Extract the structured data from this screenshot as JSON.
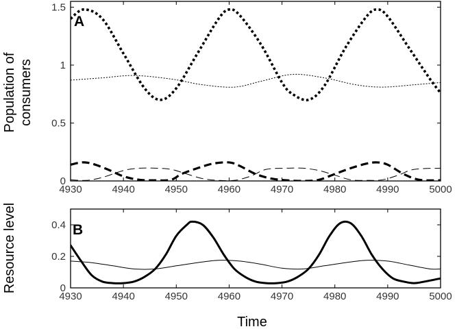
{
  "chart_data": [
    {
      "type": "line",
      "panel_label": "A",
      "ylabel": "Population of consumers",
      "ylabel_lines": [
        "Population of",
        "consumers"
      ],
      "xlim": [
        4930,
        5000
      ],
      "ylim": [
        0,
        1.55
      ],
      "x_ticks": [
        4930,
        4940,
        4950,
        4960,
        4970,
        4980,
        4990,
        5000
      ],
      "x_tick_labels": [
        "4930",
        "4940",
        "4950",
        "4960",
        "4970",
        "4980",
        "4990",
        "5000"
      ],
      "y_ticks": [
        0,
        0.5,
        1,
        1.5
      ],
      "y_tick_labels": [
        "0",
        "0.5",
        "1",
        "1.5"
      ],
      "series": [
        {
          "style": "thick-dotted",
          "x": [
            4930,
            4932.5,
            4936,
            4940,
            4944,
            4947,
            4950,
            4954,
            4958,
            4960,
            4962,
            4966,
            4970,
            4972,
            4975,
            4978,
            4982,
            4986,
            4988,
            4990,
            4994,
            4998,
            5000
          ],
          "y": [
            1.4,
            1.48,
            1.4,
            1.1,
            0.8,
            0.7,
            0.8,
            1.1,
            1.4,
            1.48,
            1.43,
            1.18,
            0.85,
            0.75,
            0.7,
            0.82,
            1.15,
            1.42,
            1.48,
            1.42,
            1.15,
            0.88,
            0.76
          ]
        },
        {
          "style": "thin-dotted",
          "x": [
            4930,
            4936,
            4942,
            4949,
            4955,
            4961,
            4966,
            4972,
            4978,
            4984,
            4989,
            4995,
            5000
          ],
          "y": [
            0.87,
            0.89,
            0.91,
            0.88,
            0.83,
            0.81,
            0.86,
            0.92,
            0.89,
            0.83,
            0.81,
            0.83,
            0.85
          ]
        },
        {
          "style": "thick-dashed",
          "x": [
            4930,
            4932,
            4934,
            4937,
            4940,
            4943,
            4946,
            4949,
            4951,
            4954,
            4957,
            4960,
            4962,
            4965,
            4968,
            4971,
            4974,
            4977,
            4980,
            4983,
            4986,
            4988,
            4990,
            4993,
            4996,
            5000
          ],
          "y": [
            0.14,
            0.16,
            0.15,
            0.1,
            0.04,
            0.01,
            0.005,
            0.01,
            0.06,
            0.11,
            0.15,
            0.16,
            0.13,
            0.06,
            0.02,
            0.005,
            0.0,
            0.01,
            0.06,
            0.11,
            0.15,
            0.16,
            0.14,
            0.06,
            0.01,
            0.005
          ]
        },
        {
          "style": "thin-dashed",
          "x": [
            4930,
            4933,
            4936,
            4940,
            4943,
            4946,
            4949,
            4952,
            4955,
            4958,
            4961,
            4964,
            4967,
            4971,
            4974,
            4977,
            4980,
            4983,
            4986,
            4989,
            4992,
            4995,
            5000
          ],
          "y": [
            0.01,
            0.005,
            0.03,
            0.09,
            0.11,
            0.11,
            0.1,
            0.06,
            0.02,
            0.005,
            0.005,
            0.04,
            0.1,
            0.11,
            0.11,
            0.09,
            0.05,
            0.01,
            0.005,
            0.01,
            0.05,
            0.1,
            0.11
          ]
        }
      ]
    },
    {
      "type": "line",
      "panel_label": "B",
      "ylabel": "Resource level",
      "xlabel": "Time",
      "xlim": [
        4930,
        5000
      ],
      "ylim": [
        0,
        0.5
      ],
      "x_ticks": [
        4930,
        4940,
        4950,
        4960,
        4970,
        4980,
        4990,
        5000
      ],
      "x_tick_labels": [
        "4930",
        "4940",
        "4950",
        "4960",
        "4970",
        "4980",
        "4990",
        "5000"
      ],
      "y_ticks": [
        0,
        0.2,
        0.4
      ],
      "y_tick_labels": [
        "0",
        "0.2",
        "0.4"
      ],
      "series": [
        {
          "style": "thick-solid",
          "x": [
            4930,
            4932,
            4934,
            4936,
            4938,
            4940,
            4942,
            4944,
            4946,
            4948,
            4950,
            4952,
            4953,
            4955,
            4957,
            4959,
            4961,
            4963,
            4965,
            4967,
            4969,
            4971,
            4973,
            4975,
            4977,
            4979,
            4981,
            4983,
            4985,
            4987,
            4989,
            4991,
            4993,
            4995,
            4997,
            5000
          ],
          "y": [
            0.27,
            0.17,
            0.08,
            0.04,
            0.03,
            0.03,
            0.04,
            0.07,
            0.12,
            0.21,
            0.33,
            0.4,
            0.42,
            0.4,
            0.32,
            0.21,
            0.12,
            0.07,
            0.04,
            0.03,
            0.03,
            0.04,
            0.07,
            0.12,
            0.21,
            0.33,
            0.41,
            0.41,
            0.33,
            0.21,
            0.12,
            0.06,
            0.04,
            0.03,
            0.04,
            0.06
          ]
        },
        {
          "style": "thin-solid",
          "x": [
            4930,
            4934,
            4938,
            4942,
            4946,
            4950,
            4954,
            4958,
            4962,
            4966,
            4970,
            4974,
            4978,
            4982,
            4986,
            4990,
            4994,
            4998,
            5000
          ],
          "y": [
            0.17,
            0.16,
            0.14,
            0.12,
            0.12,
            0.14,
            0.16,
            0.175,
            0.17,
            0.15,
            0.125,
            0.12,
            0.14,
            0.16,
            0.175,
            0.17,
            0.145,
            0.12,
            0.12
          ]
        }
      ]
    }
  ]
}
